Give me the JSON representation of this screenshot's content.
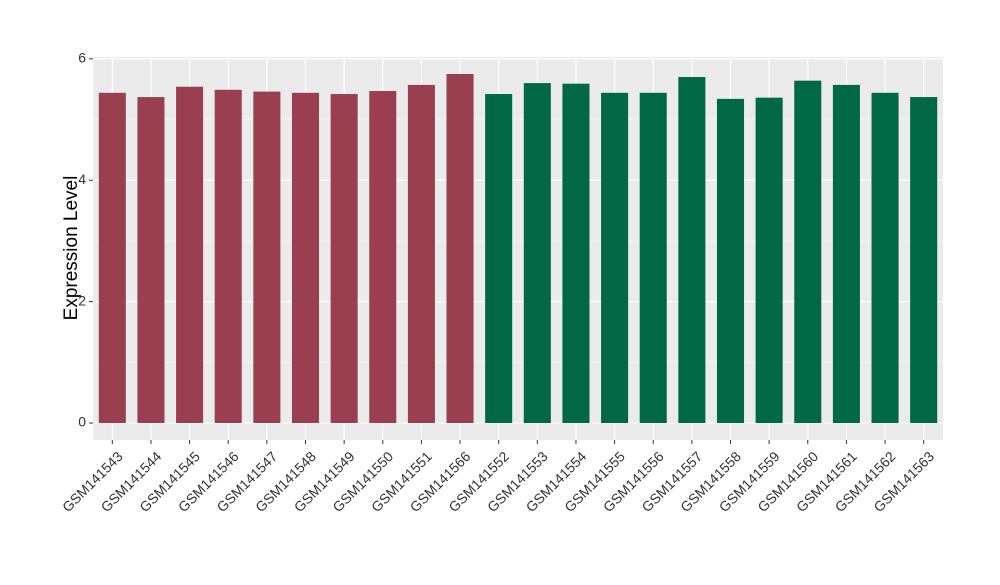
{
  "chart_data": {
    "type": "bar",
    "y_label": "Expression Level",
    "categories": [
      "GSM141543",
      "GSM141544",
      "GSM141545",
      "GSM141546",
      "GSM141547",
      "GSM141548",
      "GSM141549",
      "GSM141550",
      "GSM141551",
      "GSM141566",
      "GSM141552",
      "GSM141553",
      "GSM141554",
      "GSM141555",
      "GSM141556",
      "GSM141557",
      "GSM141558",
      "GSM141559",
      "GSM141560",
      "GSM141561",
      "GSM141562",
      "GSM141563"
    ],
    "values": [
      5.44,
      5.37,
      5.54,
      5.49,
      5.46,
      5.44,
      5.42,
      5.47,
      5.57,
      5.75,
      5.42,
      5.6,
      5.59,
      5.44,
      5.44,
      5.7,
      5.34,
      5.36,
      5.64,
      5.57,
      5.44,
      5.37
    ],
    "colors": [
      "#993f50",
      "#993f50",
      "#993f50",
      "#993f50",
      "#993f50",
      "#993f50",
      "#993f50",
      "#993f50",
      "#993f50",
      "#993f50",
      "#006845",
      "#006845",
      "#006845",
      "#006845",
      "#006845",
      "#006845",
      "#006845",
      "#006845",
      "#006845",
      "#006845",
      "#006845",
      "#006845"
    ],
    "ylim": [
      -0.28,
      6.03
    ],
    "yticks": [
      0,
      2,
      4,
      6
    ],
    "minor_yticks": [
      1,
      3,
      5
    ],
    "grid": true
  }
}
